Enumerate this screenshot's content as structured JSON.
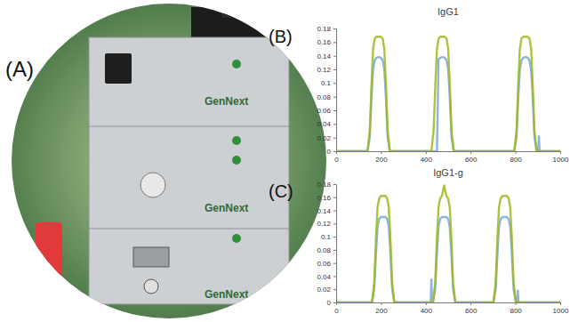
{
  "photo": {
    "panel_label": "(A)",
    "labels": [
      "GenNext",
      "GenNext",
      "GenNext"
    ]
  },
  "chart_data": [
    {
      "type": "line",
      "panel_label": "(B)",
      "title": "IgG1",
      "x": [
        0,
        140,
        150,
        158,
        165,
        172,
        180,
        190,
        200,
        208,
        215,
        222,
        230,
        240,
        425,
        435,
        443,
        450,
        457,
        465,
        475,
        485,
        493,
        500,
        507,
        515,
        525,
        795,
        805,
        813,
        820,
        827,
        835,
        845,
        855,
        863,
        870,
        877,
        885,
        895,
        902,
        905,
        908,
        1000
      ],
      "series": [
        {
          "color": "#8cb6dc",
          "values": [
            0,
            0,
            0.02,
            0.08,
            0.12,
            0.133,
            0.137,
            0.138,
            0.137,
            0.133,
            0.12,
            0.08,
            0.02,
            0,
            0,
            0,
            0,
            0,
            0.135,
            0.137,
            0.138,
            0.137,
            0.133,
            0.12,
            0.08,
            0.02,
            0,
            0,
            0.02,
            0.08,
            0.12,
            0.133,
            0.137,
            0.138,
            0.137,
            0.133,
            0.12,
            0.08,
            0.02,
            0,
            0,
            0.022,
            0,
            0
          ]
        },
        {
          "color": "#9db81f",
          "values": [
            0,
            0,
            0.03,
            0.1,
            0.15,
            0.165,
            0.168,
            0.168,
            0.168,
            0.165,
            0.15,
            0.1,
            0.03,
            0,
            0,
            0.03,
            0.1,
            0.15,
            0.165,
            0.168,
            0.168,
            0.168,
            0.165,
            0.15,
            0.1,
            0.03,
            0,
            0,
            0.03,
            0.1,
            0.15,
            0.165,
            0.168,
            0.168,
            0.168,
            0.165,
            0.15,
            0.1,
            0.03,
            0,
            0,
            0,
            0,
            0
          ]
        }
      ],
      "xlim": [
        0,
        1000
      ],
      "xticks": [
        0,
        200,
        400,
        600,
        800,
        1000
      ],
      "ylim": [
        0,
        0.18
      ],
      "yticks": [
        0,
        0.02,
        0.04,
        0.06,
        0.08,
        0.1,
        0.12,
        0.14,
        0.16,
        0.18
      ],
      "grid": false
    },
    {
      "type": "line",
      "panel_label": "(C)",
      "title": "IgG1-g",
      "x": [
        0,
        160,
        170,
        178,
        185,
        192,
        200,
        210,
        220,
        228,
        235,
        242,
        250,
        260,
        422,
        425,
        428,
        432,
        442,
        450,
        457,
        464,
        472,
        482,
        492,
        500,
        507,
        514,
        522,
        532,
        702,
        712,
        720,
        727,
        734,
        742,
        752,
        762,
        770,
        777,
        784,
        792,
        802,
        808,
        811,
        814,
        1000
      ],
      "series": [
        {
          "color": "#8cb6dc",
          "values": [
            0,
            0,
            0.02,
            0.075,
            0.115,
            0.127,
            0.13,
            0.13,
            0.13,
            0.127,
            0.115,
            0.075,
            0.02,
            0,
            0,
            0.035,
            0,
            0,
            0.02,
            0.075,
            0.115,
            0.127,
            0.13,
            0.13,
            0.13,
            0.127,
            0.115,
            0.075,
            0.02,
            0,
            0,
            0.02,
            0.075,
            0.115,
            0.127,
            0.13,
            0.13,
            0.13,
            0.127,
            0.115,
            0.075,
            0.02,
            0,
            0,
            0.018,
            0,
            0
          ]
        },
        {
          "color": "#9db81f",
          "values": [
            0,
            0,
            0.03,
            0.1,
            0.145,
            0.158,
            0.162,
            0.162,
            0.162,
            0.158,
            0.145,
            0.1,
            0.03,
            0,
            0,
            0,
            0,
            0,
            0.03,
            0.1,
            0.145,
            0.158,
            0.162,
            0.178,
            0.162,
            0.158,
            0.145,
            0.1,
            0.03,
            0,
            0,
            0.03,
            0.1,
            0.145,
            0.158,
            0.162,
            0.162,
            0.162,
            0.158,
            0.145,
            0.1,
            0.03,
            0,
            0,
            0,
            0,
            0
          ]
        }
      ],
      "xlim": [
        0,
        1000
      ],
      "xticks": [
        0,
        200,
        400,
        600,
        800,
        1000
      ],
      "ylim": [
        0,
        0.18
      ],
      "yticks": [
        0,
        0.02,
        0.04,
        0.06,
        0.08,
        0.1,
        0.12,
        0.14,
        0.16,
        0.18
      ],
      "grid": false
    }
  ]
}
